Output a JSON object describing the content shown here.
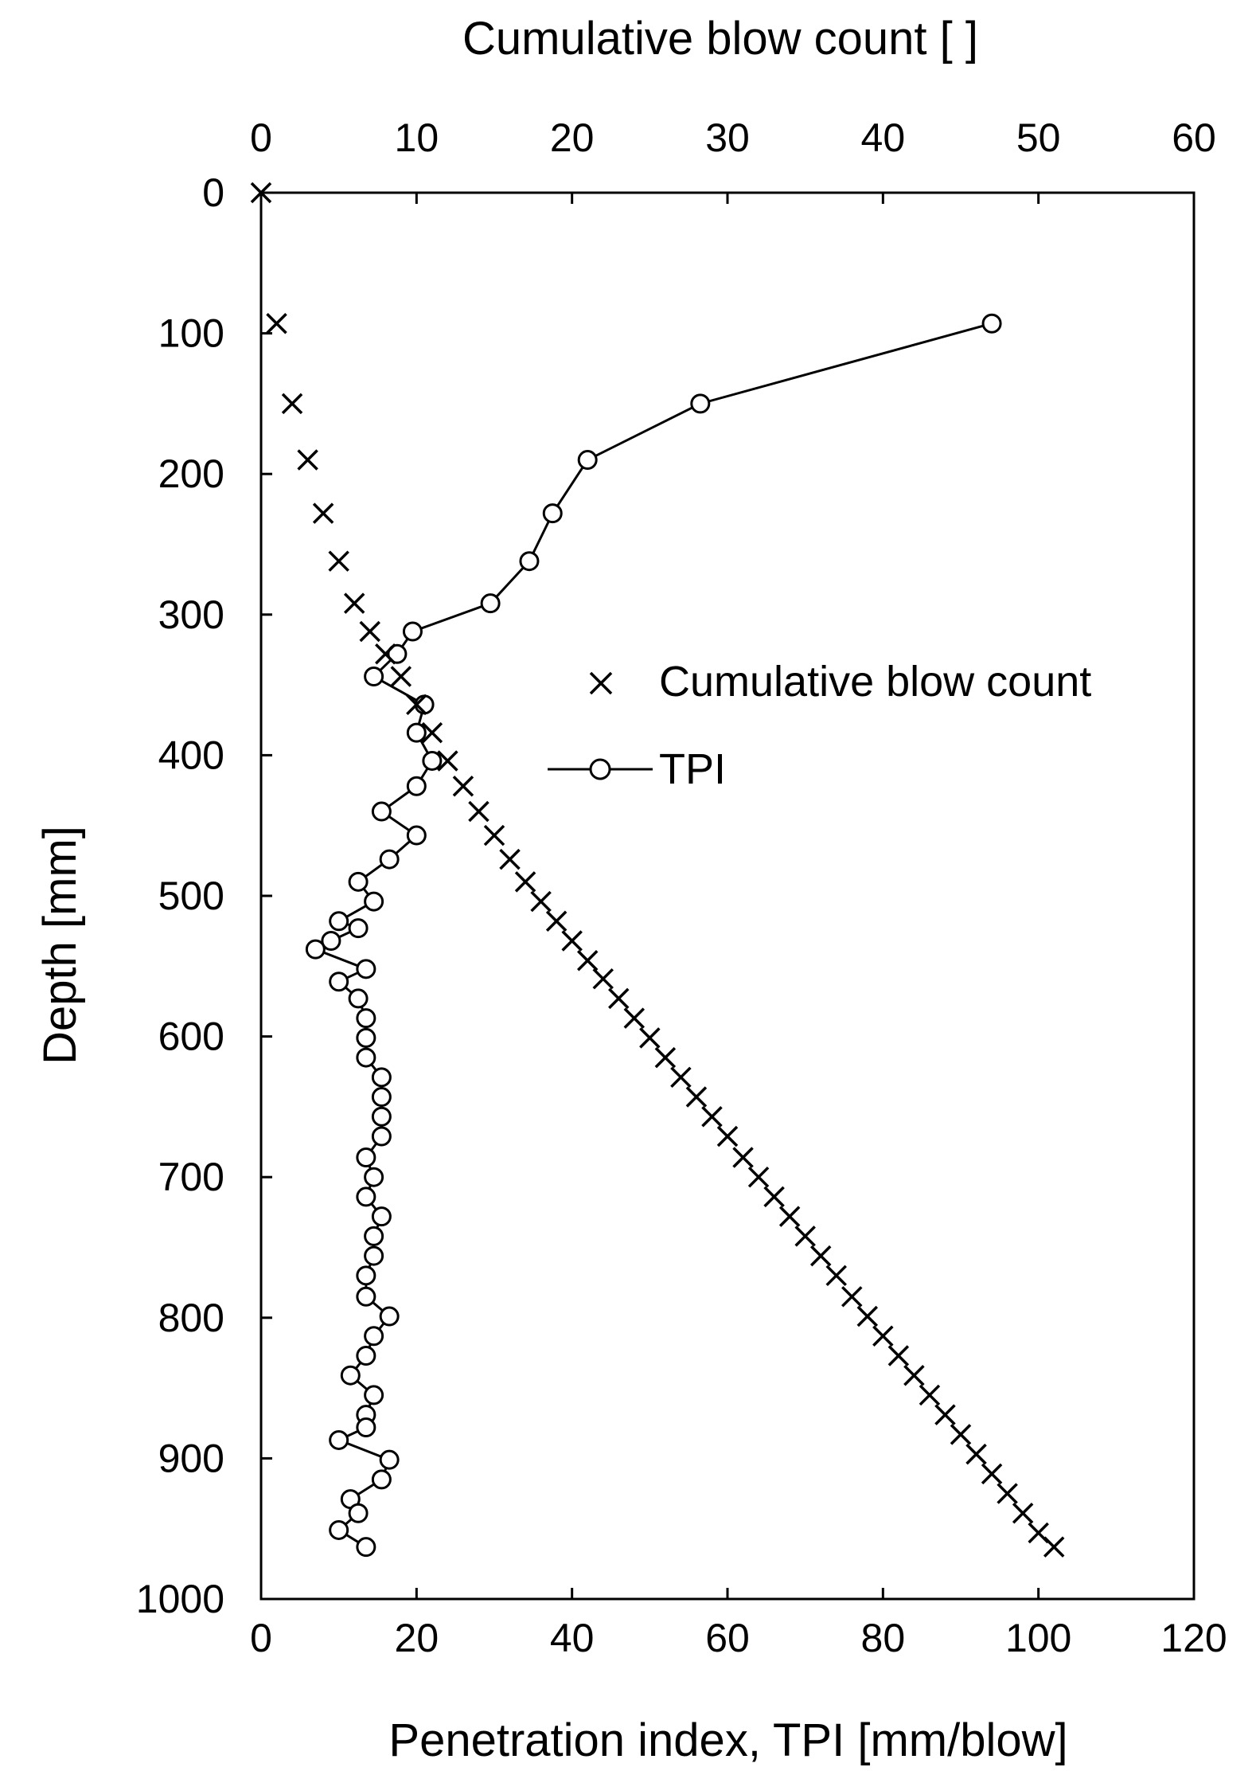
{
  "chart_data": {
    "type": "scatter",
    "axes": {
      "x_bottom": {
        "label": "Penetration index, TPI [mm/blow]",
        "range": [
          0,
          120
        ],
        "ticks": [
          "0",
          "20",
          "40",
          "60",
          "80",
          "100",
          "120"
        ]
      },
      "x_top": {
        "label": "Cumulative blow count [ ]",
        "range": [
          0,
          60
        ],
        "ticks": [
          "0",
          "10",
          "20",
          "30",
          "40",
          "50",
          "60"
        ]
      },
      "y": {
        "label": "Depth [mm]",
        "range": [
          0,
          1000
        ],
        "inverted": true,
        "ticks": [
          "0",
          "100",
          "200",
          "300",
          "400",
          "500",
          "600",
          "700",
          "800",
          "900",
          "1000"
        ]
      }
    },
    "grid": false,
    "legend": {
      "placement": "center-right"
    },
    "series": [
      {
        "name": "Cumulative blow count",
        "marker": "x",
        "line": false,
        "axis": "top",
        "points": [
          [
            0,
            0
          ],
          [
            1,
            93
          ],
          [
            2,
            150
          ],
          [
            3,
            190
          ],
          [
            4,
            228
          ],
          [
            5,
            262
          ],
          [
            6,
            292
          ],
          [
            7,
            312
          ],
          [
            8,
            328
          ],
          [
            9,
            344
          ],
          [
            10,
            364
          ],
          [
            11,
            384
          ],
          [
            12,
            404
          ],
          [
            13,
            422
          ],
          [
            14,
            440
          ],
          [
            15,
            457
          ],
          [
            16,
            474
          ],
          [
            17,
            490
          ],
          [
            18,
            504
          ],
          [
            19,
            518
          ],
          [
            20,
            532
          ],
          [
            21,
            546
          ],
          [
            22,
            559
          ],
          [
            23,
            573
          ],
          [
            24,
            587
          ],
          [
            25,
            601
          ],
          [
            26,
            615
          ],
          [
            27,
            629
          ],
          [
            28,
            643
          ],
          [
            29,
            657
          ],
          [
            30,
            671
          ],
          [
            31,
            686
          ],
          [
            32,
            700
          ],
          [
            33,
            714
          ],
          [
            34,
            728
          ],
          [
            35,
            742
          ],
          [
            36,
            756
          ],
          [
            37,
            770
          ],
          [
            38,
            785
          ],
          [
            39,
            799
          ],
          [
            40,
            813
          ],
          [
            41,
            827
          ],
          [
            42,
            841
          ],
          [
            43,
            855
          ],
          [
            44,
            869
          ],
          [
            45,
            883
          ],
          [
            46,
            897
          ],
          [
            47,
            911
          ],
          [
            48,
            925
          ],
          [
            49,
            939
          ],
          [
            50,
            953
          ],
          [
            51,
            963
          ]
        ]
      },
      {
        "name": "TPI",
        "marker": "circle",
        "line": true,
        "axis": "bottom",
        "points": [
          [
            94,
            93
          ],
          [
            56.5,
            150
          ],
          [
            42,
            190
          ],
          [
            37.5,
            228
          ],
          [
            34.5,
            262
          ],
          [
            29.5,
            292
          ],
          [
            19.5,
            312
          ],
          [
            17.5,
            328
          ],
          [
            14.5,
            344
          ],
          [
            21,
            364
          ],
          [
            20,
            384
          ],
          [
            22,
            404
          ],
          [
            20,
            422
          ],
          [
            15.5,
            440
          ],
          [
            20,
            457
          ],
          [
            16.5,
            474
          ],
          [
            12.5,
            490
          ],
          [
            14.5,
            504
          ],
          [
            10,
            518
          ],
          [
            12.5,
            523
          ],
          [
            9,
            532
          ],
          [
            7,
            538
          ],
          [
            13.5,
            552
          ],
          [
            10,
            561
          ],
          [
            12.5,
            573
          ],
          [
            13.5,
            587
          ],
          [
            13.5,
            601
          ],
          [
            13.5,
            615
          ],
          [
            15.5,
            629
          ],
          [
            15.5,
            643
          ],
          [
            15.5,
            657
          ],
          [
            15.5,
            671
          ],
          [
            13.5,
            686
          ],
          [
            14.5,
            700
          ],
          [
            13.5,
            714
          ],
          [
            15.5,
            728
          ],
          [
            14.5,
            742
          ],
          [
            14.5,
            756
          ],
          [
            13.5,
            770
          ],
          [
            13.5,
            785
          ],
          [
            16.5,
            799
          ],
          [
            14.5,
            813
          ],
          [
            13.5,
            827
          ],
          [
            11.5,
            841
          ],
          [
            14.5,
            855
          ],
          [
            13.5,
            869
          ],
          [
            13.5,
            878
          ],
          [
            10,
            887
          ],
          [
            16.5,
            901
          ],
          [
            15.5,
            915
          ],
          [
            11.5,
            929
          ],
          [
            12.5,
            939
          ],
          [
            10,
            951
          ],
          [
            13.5,
            963
          ]
        ]
      }
    ]
  }
}
